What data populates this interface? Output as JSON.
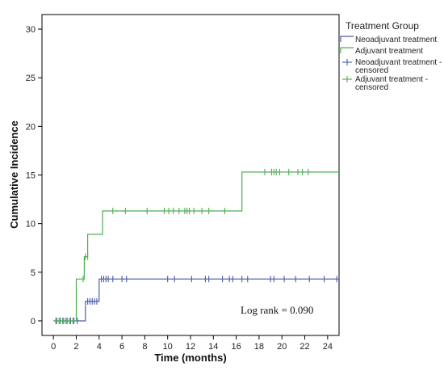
{
  "chart_data": {
    "type": "line",
    "subtype": "kaplan-meier-cumulative-incidence",
    "xlabel": "Time (months)",
    "ylabel": "Cumulative Incidence",
    "xlim": [
      -1,
      25
    ],
    "ylim": [
      -1.5,
      31.5
    ],
    "xticks": [
      0,
      2,
      4,
      6,
      8,
      10,
      12,
      14,
      16,
      18,
      20,
      22,
      24
    ],
    "yticks": [
      0,
      5,
      10,
      15,
      20,
      25,
      30
    ],
    "grid": false,
    "legend": {
      "title": "Treatment Group",
      "placement": "right",
      "entries": [
        {
          "key": "neo",
          "kind": "line",
          "lines": [
            "Neoadjuvant treatment"
          ]
        },
        {
          "key": "adj",
          "kind": "line",
          "lines": [
            "Adjuvant treatment"
          ]
        },
        {
          "key": "neo",
          "kind": "censor",
          "lines": [
            "Neoadjuvant treatment -",
            "censored"
          ]
        },
        {
          "key": "adj",
          "kind": "censor",
          "lines": [
            "Adjuvant treatment -",
            "censored"
          ]
        }
      ]
    },
    "series": [
      {
        "key": "neo",
        "color": "#4A5CAB",
        "steps": [
          [
            0,
            0
          ],
          [
            2.8,
            2.0
          ],
          [
            4.0,
            4.3
          ],
          [
            25,
            4.3
          ]
        ],
        "censored": [
          [
            0.3,
            0
          ],
          [
            0.6,
            0
          ],
          [
            0.9,
            0
          ],
          [
            1.2,
            0
          ],
          [
            1.5,
            0
          ],
          [
            1.8,
            0
          ],
          [
            2.1,
            0
          ],
          [
            3.0,
            2.0
          ],
          [
            3.2,
            2.0
          ],
          [
            3.4,
            2.0
          ],
          [
            3.6,
            2.0
          ],
          [
            3.8,
            2.0
          ],
          [
            4.2,
            4.3
          ],
          [
            4.4,
            4.3
          ],
          [
            4.6,
            4.3
          ],
          [
            4.8,
            4.3
          ],
          [
            5.2,
            4.3
          ],
          [
            6.0,
            4.3
          ],
          [
            6.4,
            4.3
          ],
          [
            10.0,
            4.3
          ],
          [
            10.6,
            4.3
          ],
          [
            12.1,
            4.3
          ],
          [
            13.3,
            4.3
          ],
          [
            13.6,
            4.3
          ],
          [
            14.8,
            4.3
          ],
          [
            15.4,
            4.3
          ],
          [
            15.7,
            4.3
          ],
          [
            16.5,
            4.3
          ],
          [
            17.0,
            4.3
          ],
          [
            19.0,
            4.3
          ],
          [
            19.3,
            4.3
          ],
          [
            20.2,
            4.3
          ],
          [
            21.2,
            4.3
          ],
          [
            22.4,
            4.3
          ],
          [
            23.7,
            4.3
          ],
          [
            24.8,
            4.3
          ]
        ]
      },
      {
        "key": "adj",
        "color": "#4CAF50",
        "steps": [
          [
            0,
            0
          ],
          [
            2.0,
            4.3
          ],
          [
            2.7,
            6.6
          ],
          [
            3.0,
            8.9
          ],
          [
            4.3,
            11.3
          ],
          [
            16.5,
            15.3
          ],
          [
            25,
            15.3
          ]
        ],
        "censored": [
          [
            0.2,
            0
          ],
          [
            0.5,
            0
          ],
          [
            0.8,
            0
          ],
          [
            1.1,
            0
          ],
          [
            1.4,
            0
          ],
          [
            1.7,
            0
          ],
          [
            2.6,
            4.3
          ],
          [
            2.8,
            6.6
          ],
          [
            3.0,
            6.6
          ],
          [
            5.2,
            11.3
          ],
          [
            6.3,
            11.3
          ],
          [
            8.2,
            11.3
          ],
          [
            9.7,
            11.3
          ],
          [
            10.1,
            11.3
          ],
          [
            10.5,
            11.3
          ],
          [
            11.0,
            11.3
          ],
          [
            11.5,
            11.3
          ],
          [
            11.7,
            11.3
          ],
          [
            11.9,
            11.3
          ],
          [
            12.3,
            11.3
          ],
          [
            13.0,
            11.3
          ],
          [
            13.6,
            11.3
          ],
          [
            15.0,
            11.3
          ],
          [
            18.5,
            15.3
          ],
          [
            19.1,
            15.3
          ],
          [
            19.3,
            15.3
          ],
          [
            19.5,
            15.3
          ],
          [
            19.8,
            15.3
          ],
          [
            20.6,
            15.3
          ],
          [
            21.4,
            15.3
          ],
          [
            21.8,
            15.3
          ],
          [
            22.3,
            15.3
          ]
        ]
      }
    ],
    "annotations": [
      {
        "text": "Log rank = 0.090"
      }
    ]
  }
}
